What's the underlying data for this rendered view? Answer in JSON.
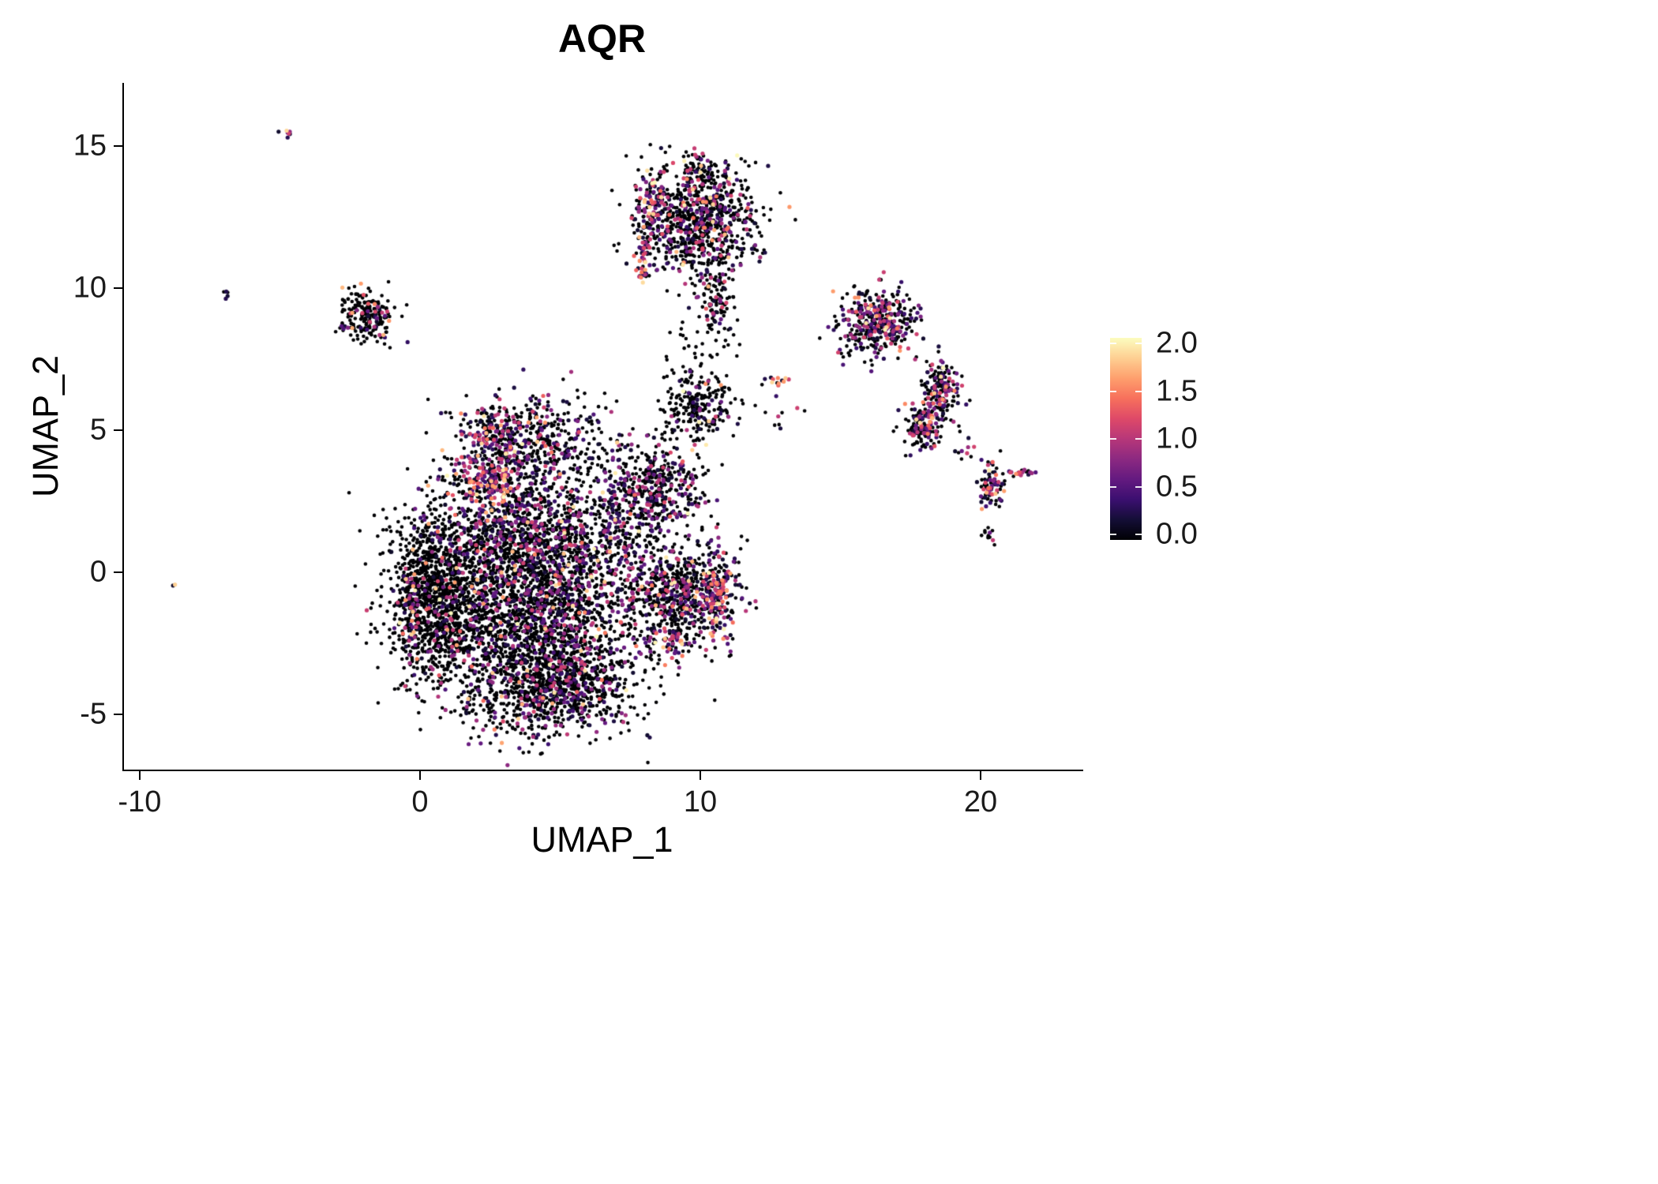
{
  "chart_data": {
    "type": "scatter",
    "title": "AQR",
    "xlabel": "UMAP_1",
    "ylabel": "UMAP_2",
    "xlim": [
      -10.56,
      23.66
    ],
    "ylim": [
      -6.94,
      17.22
    ],
    "grid": false,
    "legend_position": "right",
    "xticks": [
      {
        "value": -10,
        "label": "-10"
      },
      {
        "value": 0,
        "label": "0"
      },
      {
        "value": 10,
        "label": "10"
      },
      {
        "value": 20,
        "label": "20"
      }
    ],
    "yticks": [
      {
        "value": 15,
        "label": "15"
      },
      {
        "value": 10,
        "label": "10"
      },
      {
        "value": 5,
        "label": "5"
      },
      {
        "value": 0,
        "label": "0"
      },
      {
        "value": -5,
        "label": "-5"
      }
    ],
    "colorbar": {
      "min": 0,
      "max": 2,
      "palette": "magma",
      "ticks": [
        {
          "value": 2.0,
          "label": "2.0"
        },
        {
          "value": 1.5,
          "label": "1.5"
        },
        {
          "value": 1.0,
          "label": "1.0"
        },
        {
          "value": 0.5,
          "label": "0.5"
        },
        {
          "value": 0.0,
          "label": "0.0"
        }
      ],
      "stops": [
        "#000004",
        "#140e36",
        "#3b0f70",
        "#641a80",
        "#8c2981",
        "#b73779",
        "#de4968",
        "#f7705c",
        "#fe9f6d",
        "#fecf92",
        "#fcfdbf"
      ]
    },
    "point_style": {
      "radius_zero": 2.3,
      "radius_pos": 2.6,
      "zero_color": "#000004"
    },
    "clusters": [
      {
        "name": "main-left-dense",
        "n": 1300,
        "cx": 0.7,
        "cy": -0.8,
        "sx": 0.95,
        "sy": 1.55,
        "p0": 0.9,
        "hi": 0.15
      },
      {
        "name": "main-left-edge",
        "n": 90,
        "cx": -0.35,
        "cy": -1.5,
        "sx": 0.18,
        "sy": 0.95,
        "p0": 0.5,
        "hi": 0.3
      },
      {
        "name": "main-core",
        "n": 1900,
        "cx": 4.3,
        "cy": -1.4,
        "sx": 1.7,
        "sy": 1.7,
        "p0": 0.74,
        "hi": 0.12
      },
      {
        "name": "main-bottom",
        "n": 800,
        "cx": 4.8,
        "cy": -4.1,
        "sx": 1.45,
        "sy": 0.85,
        "p0": 0.78,
        "hi": 0.12
      },
      {
        "name": "main-mid-upper",
        "n": 950,
        "cx": 4.0,
        "cy": 1.6,
        "sx": 1.8,
        "sy": 1.1,
        "p0": 0.7,
        "hi": 0.12
      },
      {
        "name": "upper-lobe",
        "n": 480,
        "cx": 4.1,
        "cy": 4.7,
        "sx": 1.25,
        "sy": 0.75,
        "p0": 0.72,
        "hi": 0.12
      },
      {
        "name": "upper-lobe-left-edge",
        "n": 70,
        "cx": 2.35,
        "cy": 5.0,
        "sx": 0.4,
        "sy": 0.45,
        "p0": 0.35,
        "hi": 0.3
      },
      {
        "name": "colored-band",
        "n": 240,
        "cx": 2.5,
        "cy": 3.1,
        "sx": 0.85,
        "sy": 0.5,
        "p0": 0.3,
        "hi": 0.35
      },
      {
        "name": "right-lobe",
        "n": 650,
        "cx": 9.2,
        "cy": -0.7,
        "sx": 1.0,
        "sy": 0.9,
        "p0": 0.74,
        "hi": 0.12
      },
      {
        "name": "right-lobe-arc",
        "n": 140,
        "cx": 10.6,
        "cy": -0.8,
        "sx": 0.3,
        "sy": 0.85,
        "p0": 0.22,
        "hi": 0.45
      },
      {
        "name": "right-lobe-bottom",
        "n": 60,
        "cx": 8.9,
        "cy": -2.4,
        "sx": 0.5,
        "sy": 0.3,
        "p0": 0.4,
        "hi": 0.4
      },
      {
        "name": "offshoot",
        "n": 400,
        "cx": 8.5,
        "cy": 3.0,
        "sx": 0.85,
        "sy": 0.8,
        "p0": 0.7,
        "hi": 0.15
      },
      {
        "name": "bridge",
        "n": 80,
        "cx": 7.2,
        "cy": 1.6,
        "sx": 0.5,
        "sy": 0.7,
        "p0": 0.6,
        "hi": 0.2
      },
      {
        "name": "ring-cluster",
        "n": 230,
        "cx": 9.9,
        "cy": 5.9,
        "sx": 0.7,
        "sy": 0.65,
        "p0": 0.8,
        "hi": 0.15
      },
      {
        "name": "top-main",
        "n": 850,
        "cx": 9.9,
        "cy": 12.4,
        "sx": 1.0,
        "sy": 1.0,
        "p0": 0.72,
        "hi": 0.18
      },
      {
        "name": "top-nub",
        "n": 55,
        "cx": 9.9,
        "cy": 14.25,
        "sx": 0.28,
        "sy": 0.4,
        "p0": 0.6,
        "hi": 0.2
      },
      {
        "name": "top-tail",
        "n": 110,
        "cx": 10.6,
        "cy": 9.6,
        "sx": 0.3,
        "sy": 0.75,
        "p0": 0.75,
        "hi": 0.15
      },
      {
        "name": "top-left-edge",
        "n": 75,
        "cx": 8.3,
        "cy": 13.0,
        "sx": 0.3,
        "sy": 0.5,
        "p0": 0.25,
        "hi": 0.4
      },
      {
        "name": "top-left-streak",
        "n": 45,
        "cx": 7.95,
        "cy": 11.2,
        "sx": 0.15,
        "sy": 0.5,
        "p0": 0.25,
        "hi": 0.45
      },
      {
        "name": "left-small-cluster",
        "n": 210,
        "cx": -1.9,
        "cy": 9.0,
        "sx": 0.5,
        "sy": 0.45,
        "p0": 0.84,
        "hi": 0.3
      },
      {
        "name": "right-upper-cluster",
        "n": 370,
        "cx": 16.4,
        "cy": 8.8,
        "sx": 0.65,
        "sy": 0.55,
        "p0": 0.55,
        "hi": 0.2
      },
      {
        "name": "right-lower-a",
        "n": 150,
        "cx": 17.95,
        "cy": 5.2,
        "sx": 0.35,
        "sy": 0.45,
        "p0": 0.55,
        "hi": 0.25
      },
      {
        "name": "right-lower-b",
        "n": 160,
        "cx": 18.6,
        "cy": 6.4,
        "sx": 0.35,
        "sy": 0.5,
        "p0": 0.55,
        "hi": 0.2
      },
      {
        "name": "far-right-small",
        "n": 75,
        "cx": 20.4,
        "cy": 3.0,
        "sx": 0.22,
        "sy": 0.4,
        "p0": 0.5,
        "hi": 0.25
      },
      {
        "name": "far-right-dash",
        "n": 22,
        "cx": 21.4,
        "cy": 3.5,
        "sx": 0.25,
        "sy": 0.07,
        "p0": 0.3,
        "hi": 0.1
      },
      {
        "name": "far-right-dots",
        "n": 12,
        "cx": 20.25,
        "cy": 1.3,
        "sx": 0.1,
        "sy": 0.18,
        "p0": 0.5,
        "hi": 0.1
      },
      {
        "name": "tiny-orange-cluster",
        "n": 9,
        "cx": 12.8,
        "cy": 6.7,
        "sx": 0.14,
        "sy": 0.1,
        "p0": 0.1,
        "hi": 0.6
      },
      {
        "name": "tiny-dash-northwest",
        "n": 8,
        "cx": -4.75,
        "cy": 15.45,
        "sx": 0.13,
        "sy": 0.08,
        "p0": 0.1,
        "hi": 0.2
      },
      {
        "name": "tiny-pair-west",
        "n": 5,
        "cx": -6.9,
        "cy": 9.75,
        "sx": 0.08,
        "sy": 0.12,
        "p0": 0.2,
        "hi": 0.2
      },
      {
        "name": "single-dot-southwest",
        "n": 2,
        "cx": -8.75,
        "cy": -0.45,
        "sx": 0.04,
        "sy": 0.04,
        "p0": 0.0,
        "hi": 0.2
      },
      {
        "name": "sparse-mid",
        "n": 26,
        "cx": 9.9,
        "cy": 7.6,
        "sx": 0.5,
        "sy": 0.8,
        "p0": 0.75,
        "hi": 0.2
      },
      {
        "name": "sparse-right-mid",
        "n": 20,
        "cx": 12.3,
        "cy": 5.8,
        "sx": 1.1,
        "sy": 0.5,
        "p0": 0.7,
        "hi": 0.2
      },
      {
        "name": "sparse-between-right",
        "n": 14,
        "cx": 19.6,
        "cy": 4.3,
        "sx": 0.35,
        "sy": 0.5,
        "p0": 0.6,
        "hi": 0.2
      },
      {
        "name": "sparse-upper-right-gap",
        "n": 10,
        "cx": 15.2,
        "cy": 7.9,
        "sx": 0.4,
        "sy": 0.35,
        "p0": 0.7,
        "hi": 0.2
      }
    ]
  }
}
